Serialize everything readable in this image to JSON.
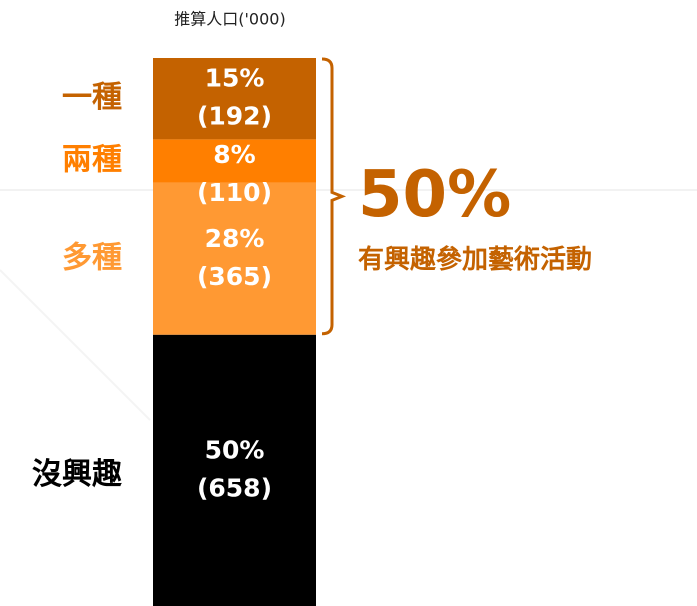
{
  "chart_data": {
    "type": "stacked_bar",
    "y_label": "推算人口('000)",
    "categories": [
      null
    ],
    "series": [
      {
        "name": "沒興趣",
        "color": "#000000",
        "values": [
          50
        ],
        "value_labels": [
          "50%"
        ],
        "population": [
          658
        ],
        "population_labels": [
          "(658)"
        ]
      },
      {
        "name": "多種",
        "color": "#ff9933",
        "values": [
          28
        ],
        "value_labels": [
          "28%"
        ],
        "population": [
          365
        ],
        "population_labels": [
          "(365)"
        ]
      },
      {
        "name": "兩種",
        "color": "#ff7f00",
        "values": [
          8
        ],
        "value_labels": [
          "8%"
        ],
        "population": [
          110
        ],
        "population_labels": [
          "(110)"
        ]
      },
      {
        "name": "一種",
        "color": "#c46200",
        "values": [
          15
        ],
        "value_labels": [
          "15%"
        ],
        "population": [
          192
        ],
        "population_labels": [
          "(192)"
        ]
      }
    ],
    "annotation": {
      "value": "50%",
      "text": "有興趣參加藝術活動",
      "color": "#c46200"
    }
  }
}
